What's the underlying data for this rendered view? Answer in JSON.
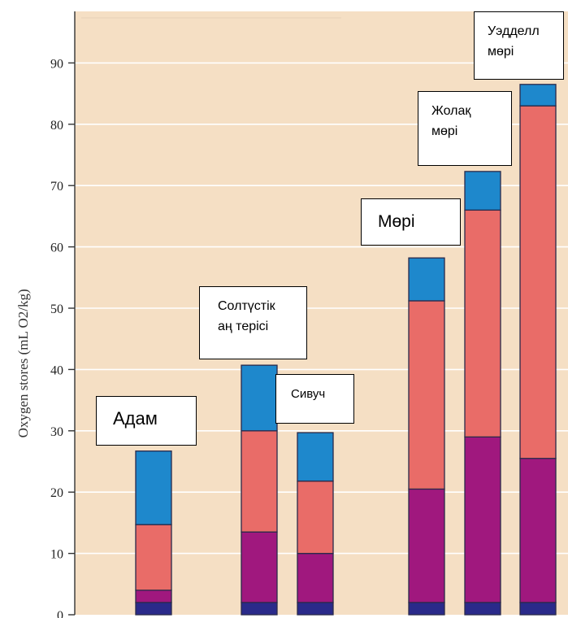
{
  "chart_data": {
    "type": "bar",
    "stacked": true,
    "ylabel": "Oxygen stores (mL O2/kg)",
    "ylim": [
      0,
      100
    ],
    "yticks": [
      0,
      10,
      20,
      30,
      40,
      50,
      60,
      70,
      80,
      90
    ],
    "grid": true,
    "categories": [
      "Адам",
      "Солтүстік аң терісі",
      "Сивуч",
      "Мөрі",
      "Жолақ мөрі",
      "Уэдделл мөрі"
    ],
    "series": [
      {
        "color": "#2a2a8a",
        "values": [
          2,
          2,
          2,
          2,
          2,
          2
        ]
      },
      {
        "color": "#a0187e",
        "values": [
          2,
          11.5,
          8,
          18.5,
          27,
          23.5
        ]
      },
      {
        "color": "#e96c68",
        "values": [
          10.7,
          16.5,
          11.8,
          30.7,
          37,
          57.5
        ]
      },
      {
        "color": "#1e88cc",
        "values": [
          12,
          10.7,
          7.9,
          7,
          6.3,
          3.5
        ]
      }
    ]
  },
  "colors": {
    "plot_background": "#f5dfc4",
    "gridline": "#ffffff",
    "bar_outline": "#2a2a4a"
  }
}
